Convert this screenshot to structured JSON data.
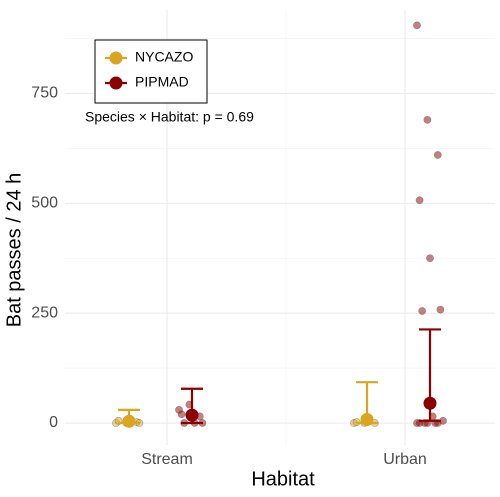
{
  "chart_data": {
    "type": "dot-errorbar",
    "xlabel": "Habitat",
    "ylabel": "Bat passes / 24 h",
    "annotation": "Species × Habitat: p = 0.69",
    "categories": [
      "Stream",
      "Urban"
    ],
    "ylim": [
      -50,
      940
    ],
    "yticks": [
      0,
      250,
      500,
      750
    ],
    "grid": true,
    "legend": "top-left",
    "series": [
      {
        "name": "NYCAZO",
        "color": "#DAA520",
        "means": [
          4,
          8
        ],
        "upper": [
          30,
          93
        ],
        "lower": [
          0,
          0
        ],
        "points": [
          [
            0,
            0,
            2,
            5,
            3,
            0
          ],
          [
            0,
            0,
            0,
            2
          ]
        ]
      },
      {
        "name": "PIPMAD",
        "color": "#8B0000",
        "means": [
          18,
          45
        ],
        "upper": [
          78,
          213
        ],
        "lower": [
          0,
          5
        ],
        "points": [
          [
            30,
            42,
            15,
            20,
            10,
            0,
            0,
            0
          ],
          [
            905,
            690,
            610,
            507,
            375,
            258,
            255,
            15,
            5,
            0,
            0,
            0,
            0,
            0,
            0
          ]
        ]
      }
    ]
  }
}
